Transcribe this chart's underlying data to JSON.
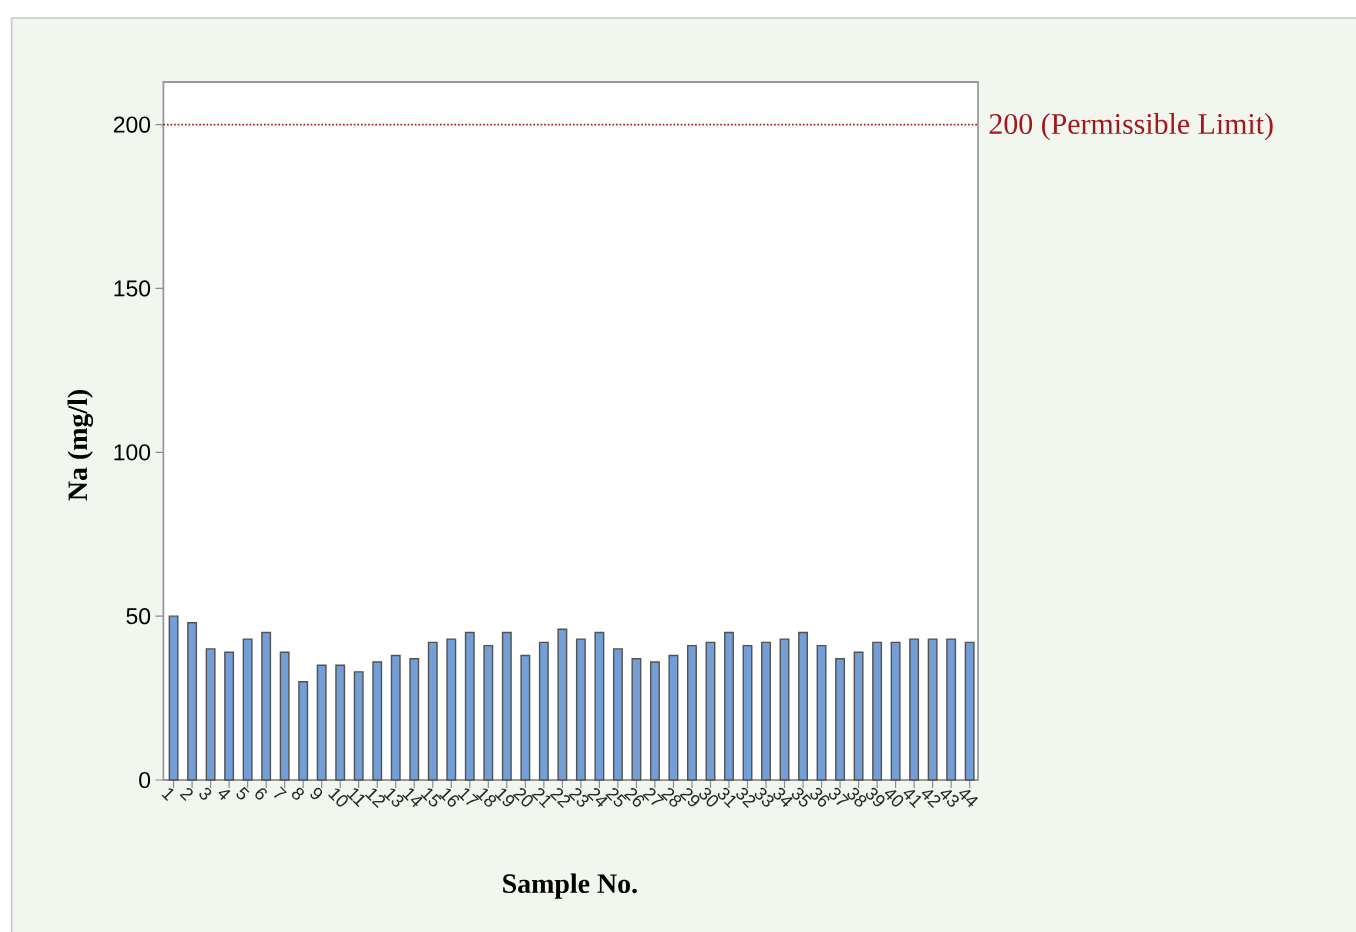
{
  "chart_data": {
    "type": "bar",
    "xlabel": "Sample No.",
    "ylabel": "Na (mg/l)",
    "categories": [
      "1",
      "2",
      "3",
      "4",
      "5",
      "6",
      "7",
      "8",
      "9",
      "10",
      "11",
      "12",
      "13",
      "14",
      "15",
      "16",
      "17",
      "18",
      "19",
      "20",
      "21",
      "22",
      "23",
      "24",
      "25",
      "26",
      "27",
      "28",
      "29",
      "30",
      "31",
      "32",
      "33",
      "34",
      "35",
      "36",
      "37",
      "38",
      "39",
      "40",
      "41",
      "42",
      "43",
      "44"
    ],
    "values": [
      50,
      48,
      40,
      39,
      43,
      45,
      39,
      30,
      35,
      35,
      33,
      36,
      38,
      37,
      42,
      43,
      45,
      41,
      45,
      38,
      42,
      46,
      43,
      45,
      40,
      37,
      36,
      38,
      41,
      42,
      45,
      41,
      42,
      43,
      45,
      41,
      37,
      39,
      42,
      42,
      43,
      43,
      43,
      42
    ],
    "color": "#739fd6",
    "ylim": [
      0,
      213
    ],
    "yticks": [
      0,
      50,
      100,
      150,
      200
    ],
    "ref_lines": [
      {
        "axis": "y",
        "value": 200,
        "label": "200 (Permissible Limit)",
        "color": "#a3161b",
        "line_style": "dotted"
      }
    ]
  }
}
